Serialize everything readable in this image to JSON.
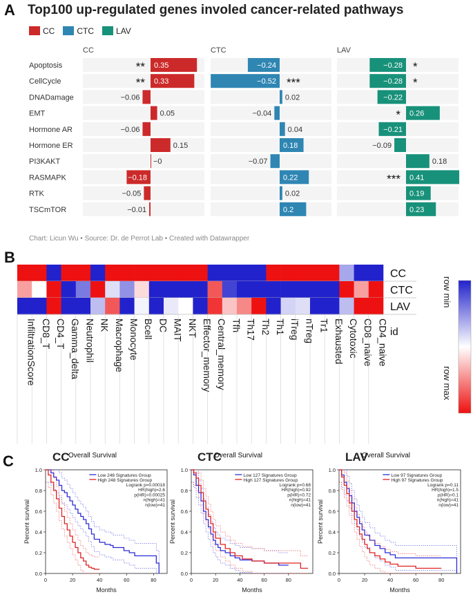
{
  "panel_letters": {
    "a": "A",
    "b": "B",
    "c": "C"
  },
  "panelA": {
    "title": "Top100 up-regulated genes involed cancer-related pathways",
    "legend": [
      {
        "label": "CC",
        "color": "#cc2a2a"
      },
      {
        "label": "CTC",
        "color": "#2f86b3"
      },
      {
        "label": "LAV",
        "color": "#18917a"
      }
    ],
    "credit": "Chart: Licun Wu • Source: Dr. de Perrot Lab • Created with Datawrapper"
  },
  "panelC": {
    "headers": [
      "CC",
      "CTC",
      "LAV"
    ]
  },
  "chart_data": [
    {
      "type": "bar",
      "orientation": "horizontal",
      "title": "Top100 up-regulated genes involed cancer-related pathways",
      "categories": [
        "Apoptosis",
        "CellCycle",
        "DNADamage",
        "EMT",
        "Hormone AR",
        "Hormone ER",
        "PI3KAKT",
        "RASMAPK",
        "RTK",
        "TSCmTOR"
      ],
      "series": [
        {
          "name": "CC",
          "color": "#cc2a2a",
          "values": [
            0.35,
            0.33,
            -0.06,
            0.05,
            -0.06,
            0.15,
            -0.0,
            -0.18,
            -0.05,
            -0.01
          ],
          "labels": [
            "0.35",
            "0.33",
            "−0.06",
            "0.05",
            "−0.06",
            "0.15",
            "−0",
            "−0.18",
            "−0.05",
            "−0.01"
          ],
          "stars": [
            "**",
            "**",
            "",
            "",
            "",
            "",
            "",
            "",
            "",
            ""
          ]
        },
        {
          "name": "CTC",
          "color": "#2f86b3",
          "values": [
            -0.24,
            -0.52,
            0.02,
            -0.04,
            0.04,
            0.18,
            -0.07,
            0.22,
            0.02,
            0.2
          ],
          "labels": [
            "−0.24",
            "−0.52",
            "0.02",
            "−0.04",
            "0.04",
            "0.18",
            "−0.07",
            "0.22",
            "0.02",
            "0.2"
          ],
          "stars": [
            "",
            "***",
            "",
            "",
            "",
            "",
            "",
            "",
            "",
            ""
          ]
        },
        {
          "name": "LAV",
          "color": "#18917a",
          "values": [
            -0.28,
            -0.28,
            -0.22,
            0.26,
            -0.21,
            -0.09,
            0.18,
            0.41,
            0.19,
            0.23
          ],
          "labels": [
            "−0.28",
            "−0.28",
            "−0.22",
            "0.26",
            "−0.21",
            "−0.09",
            "0.18",
            "0.41",
            "0.19",
            "0.23"
          ],
          "stars": [
            "*",
            "*",
            "",
            "*",
            "",
            "",
            "",
            "***",
            "",
            ""
          ]
        }
      ]
    },
    {
      "type": "heatmap",
      "rows": [
        "CC",
        "CTC",
        "LAV"
      ],
      "row_header_extra": "id",
      "columns": [
        "InfiltrationScore",
        "CD8_T",
        "CD4_T",
        "Gamma_delta",
        "Neutrophil",
        "NK",
        "Macrophage",
        "Monocyte",
        "Bcell",
        "DC",
        "MAIT",
        "NKT",
        "Effector_memory",
        "Central_memory",
        "Tfh",
        "Th17",
        "Th2",
        "Th1",
        "iTreg",
        "nTreg",
        "Tr1",
        "Exhausted",
        "Cytotoxic",
        "CD8_naive",
        "CD4_naive"
      ],
      "values": [
        [
          1,
          1,
          -1,
          1,
          1,
          -1,
          1,
          1,
          1,
          1,
          1,
          1,
          1,
          -1,
          -1,
          -1,
          -1,
          1,
          1,
          1,
          1,
          1,
          -0.4,
          -1,
          -1
        ],
        [
          0.4,
          0,
          1,
          -1,
          -0.6,
          1,
          -0.15,
          -0.5,
          0.15,
          -1,
          -1,
          -1,
          -1,
          0.7,
          -0.85,
          -1,
          -1,
          -1,
          -1,
          -1,
          -1,
          -1,
          1,
          0.4,
          1
        ],
        [
          -1,
          -1,
          1,
          -1,
          -1,
          -0.3,
          0.7,
          -1,
          -0.05,
          -1,
          -0.1,
          0,
          -1,
          0.85,
          0.25,
          0.5,
          1,
          -1,
          -0.2,
          -0.15,
          -1,
          -1,
          -0.3,
          1,
          1
        ]
      ],
      "colorbar": {
        "min_label": "row min",
        "max_label": "row max",
        "min_color": "#2222cc",
        "mid_color": "#ffffff",
        "max_color": "#ee1111"
      }
    },
    {
      "type": "line",
      "subtitle": "Overall Survival",
      "xlabel": "Months",
      "ylabel": "Percent survival",
      "xlim": [
        0,
        90
      ],
      "ylim": [
        0,
        1.0
      ],
      "xticks": [
        0,
        20,
        40,
        60,
        80
      ],
      "yticks": [
        0.0,
        0.2,
        0.4,
        0.6,
        0.8,
        1.0
      ],
      "legend": [
        "Low 248 Signatures Group",
        "High 248 Signatures Group"
      ],
      "stats": [
        "Logrank p=0.00018",
        "HR(high)=2.6",
        "p(HR)=0.00025",
        "n(high)=41",
        "n(low)=41"
      ],
      "series": [
        {
          "name": "Low 248 Signatures Group",
          "color": "#2b2bd8",
          "x": [
            0,
            4,
            6,
            8,
            10,
            12,
            14,
            16,
            18,
            20,
            22,
            24,
            26,
            28,
            30,
            32,
            34,
            36,
            40,
            44,
            48,
            50,
            58,
            62,
            66,
            82,
            84
          ],
          "y": [
            1.0,
            0.97,
            0.93,
            0.9,
            0.85,
            0.8,
            0.78,
            0.74,
            0.7,
            0.66,
            0.62,
            0.58,
            0.55,
            0.52,
            0.48,
            0.43,
            0.38,
            0.33,
            0.3,
            0.28,
            0.27,
            0.25,
            0.22,
            0.2,
            0.17,
            0.1,
            0.0
          ]
        },
        {
          "name": "High 248 Signatures Group",
          "color": "#e02020",
          "x": [
            0,
            2,
            4,
            6,
            8,
            10,
            12,
            14,
            16,
            18,
            20,
            22,
            24,
            26,
            28,
            30,
            32,
            34,
            36,
            40
          ],
          "y": [
            1.0,
            0.95,
            0.88,
            0.8,
            0.72,
            0.63,
            0.55,
            0.48,
            0.42,
            0.36,
            0.3,
            0.25,
            0.2,
            0.15,
            0.12,
            0.08,
            0.06,
            0.05,
            0.04,
            0.04
          ]
        }
      ]
    },
    {
      "type": "line",
      "subtitle": "Overall Survival",
      "xlabel": "Months",
      "ylabel": "Percent survival",
      "xlim": [
        0,
        100
      ],
      "ylim": [
        0,
        1.0
      ],
      "xticks": [
        0,
        20,
        40,
        60,
        80
      ],
      "yticks": [
        0.0,
        0.2,
        0.4,
        0.6,
        0.8,
        1.0
      ],
      "legend": [
        "Low 127 Signatures Group",
        "High 127 Signatures Group"
      ],
      "stats": [
        "Logrank p=0.68",
        "HR(high)=0.92",
        "p(HR)=0.72",
        "n(high)=41",
        "n(low)=41"
      ],
      "series": [
        {
          "name": "Low 127 Signatures Group",
          "color": "#2b2bd8",
          "x": [
            0,
            2,
            4,
            6,
            8,
            10,
            12,
            14,
            16,
            18,
            20,
            22,
            24,
            28,
            32,
            36,
            40,
            50,
            60,
            72,
            80
          ],
          "y": [
            1.0,
            0.95,
            0.85,
            0.78,
            0.7,
            0.6,
            0.52,
            0.45,
            0.38,
            0.32,
            0.28,
            0.25,
            0.22,
            0.2,
            0.17,
            0.15,
            0.13,
            0.12,
            0.1,
            0.08,
            0.08
          ]
        },
        {
          "name": "High 127 Signatures Group",
          "color": "#e02020",
          "x": [
            0,
            2,
            4,
            6,
            8,
            10,
            12,
            14,
            16,
            18,
            20,
            24,
            28,
            32,
            36,
            42,
            50,
            60,
            70,
            80,
            90,
            96
          ],
          "y": [
            1.0,
            0.97,
            0.92,
            0.85,
            0.78,
            0.7,
            0.62,
            0.55,
            0.48,
            0.4,
            0.34,
            0.28,
            0.24,
            0.2,
            0.17,
            0.14,
            0.12,
            0.1,
            0.1,
            0.1,
            0.05,
            0.05
          ]
        }
      ]
    },
    {
      "type": "line",
      "subtitle": "Overall Survival",
      "xlabel": "Months",
      "ylabel": "Percent survival",
      "xlim": [
        0,
        95
      ],
      "ylim": [
        0,
        1.0
      ],
      "xticks": [
        0,
        20,
        40,
        60,
        80
      ],
      "yticks": [
        0.0,
        0.2,
        0.4,
        0.6,
        0.8,
        1.0
      ],
      "legend": [
        "Low 97 Signatures Group",
        "High 97 Signatures Group"
      ],
      "stats": [
        "Logrank p=0.11",
        "HR(high)=1.5",
        "p(HR)=0.1",
        "n(high)=41",
        "n(low)=41"
      ],
      "series": [
        {
          "name": "Low 97 Signatures Group",
          "color": "#2b2bd8",
          "x": [
            0,
            2,
            4,
            6,
            8,
            10,
            12,
            14,
            16,
            18,
            20,
            24,
            28,
            32,
            36,
            40,
            44,
            50,
            60,
            70,
            80,
            88,
            92
          ],
          "y": [
            1.0,
            0.95,
            0.88,
            0.82,
            0.75,
            0.68,
            0.6,
            0.54,
            0.48,
            0.42,
            0.37,
            0.32,
            0.27,
            0.24,
            0.2,
            0.18,
            0.15,
            0.15,
            0.15,
            0.15,
            0.15,
            0.15,
            0.0
          ]
        },
        {
          "name": "High 97 Signatures Group",
          "color": "#e02020",
          "x": [
            0,
            2,
            4,
            6,
            8,
            10,
            12,
            14,
            16,
            18,
            20,
            22,
            24,
            28,
            32,
            36,
            40,
            46,
            50,
            60,
            70,
            80
          ],
          "y": [
            1.0,
            0.93,
            0.85,
            0.77,
            0.68,
            0.6,
            0.52,
            0.45,
            0.38,
            0.33,
            0.28,
            0.24,
            0.2,
            0.17,
            0.14,
            0.11,
            0.09,
            0.07,
            0.07,
            0.05,
            0.05,
            0.05
          ]
        }
      ]
    }
  ]
}
